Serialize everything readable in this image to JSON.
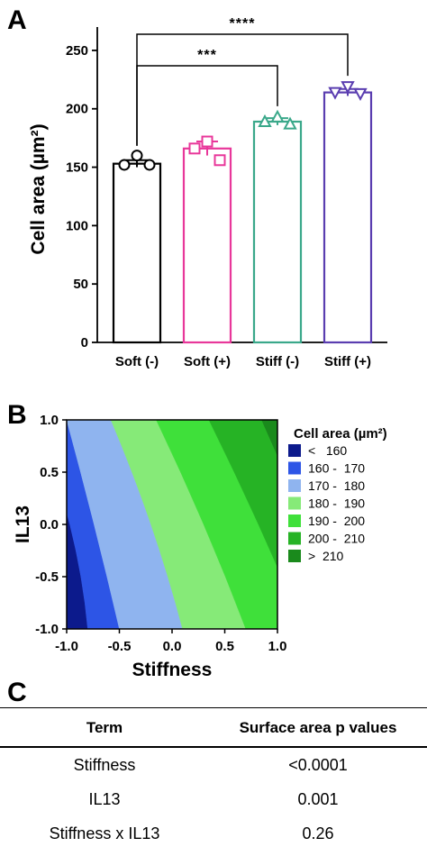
{
  "panels": {
    "a": {
      "letter": "A"
    },
    "b": {
      "letter": "B"
    },
    "c": {
      "letter": "C"
    }
  },
  "chart_data": [
    {
      "type": "bar",
      "panel": "A",
      "ylabel": "Cell area (µm²)",
      "ylim": [
        0,
        270
      ],
      "yticks": [
        0,
        50,
        100,
        150,
        200,
        250
      ],
      "categories": [
        "Soft (-)",
        "Soft (+)",
        "Stiff (-)",
        "Stiff (+)"
      ],
      "values": [
        153,
        166,
        189,
        214
      ],
      "errors": [
        3,
        6,
        3,
        3
      ],
      "bar_colors": [
        "#000000",
        "#e8379a",
        "#3aa88a",
        "#5a3db0"
      ],
      "markers": [
        "circle",
        "square",
        "triangle-up",
        "triangle-down"
      ],
      "points": [
        [
          160,
          152,
          152
        ],
        [
          172,
          166,
          156
        ],
        [
          193,
          189,
          187
        ],
        [
          219,
          214,
          213
        ]
      ],
      "significance": [
        {
          "from": 0,
          "to": 2,
          "label": "***"
        },
        {
          "from": 0,
          "to": 3,
          "label": "****"
        }
      ]
    },
    {
      "type": "heatmap",
      "panel": "B",
      "xlabel": "Stiffness",
      "ylabel": "IL13",
      "xlim": [
        -1.0,
        1.0
      ],
      "ylim": [
        -1.0,
        1.0
      ],
      "xticks": [
        "-1.0",
        "-0.5",
        "0.0",
        "0.5",
        "1.0"
      ],
      "yticks": [
        "1.0",
        "0.5",
        "0.0",
        "-0.5",
        "-1.0"
      ],
      "legend_title": "Cell area (µm²)",
      "legend": [
        {
          "label": "<   160",
          "color": "#0c1a8c"
        },
        {
          "label": "160 -  170",
          "color": "#2d55e6"
        },
        {
          "label": "170 -  180",
          "color": "#8fb4ef"
        },
        {
          "label": "180 -  190",
          "color": "#86ea78"
        },
        {
          "label": "190 -  200",
          "color": "#3fe03a"
        },
        {
          "label": "200 -  210",
          "color": "#26b325"
        },
        {
          "label": ">  210",
          "color": "#1a8a1c"
        }
      ]
    }
  ],
  "table": {
    "headers": [
      "Term",
      "Surface area p values"
    ],
    "rows": [
      [
        "Stiffness",
        "<0.0001"
      ],
      [
        "IL13",
        "0.001"
      ],
      [
        "Stiffness x IL13",
        "0.26"
      ]
    ]
  }
}
